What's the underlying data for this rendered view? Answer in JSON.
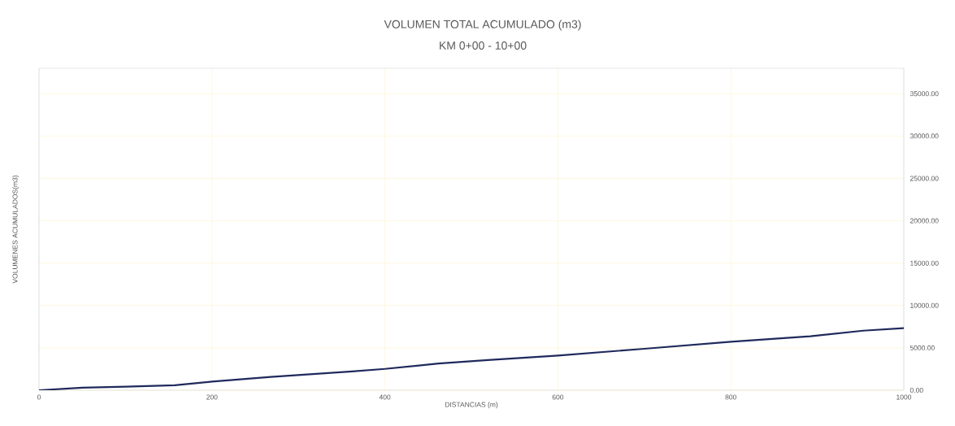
{
  "chart_data": {
    "type": "line",
    "title": "VOLUMEN TOTAL ACUMULADO (m3)",
    "subtitle": "KM 0+00 - 10+00",
    "xlabel": "DISTANCIAS (m)",
    "ylabel": "VOLUMENES ACUMULADOS(m3)",
    "series": [
      {
        "color": "#1f2a5c",
        "x": [
          0,
          50,
          100,
          157,
          200,
          268,
          362,
          400,
          462,
          519,
          600,
          700,
          800,
          892,
          953,
          1000
        ],
        "values": [
          0,
          290,
          410,
          580,
          1020,
          1565,
          2210,
          2515,
          3160,
          3570,
          4095,
          4890,
          5725,
          6375,
          7030,
          7320
        ]
      }
    ],
    "xlim": [
      0,
      1000
    ],
    "ylim": [
      0,
      38000
    ],
    "xticks": [
      0,
      200,
      400,
      600,
      800,
      1000
    ],
    "yticks": [
      {
        "value": 0,
        "label": "0.00"
      },
      {
        "value": 5000,
        "label": "5000.00"
      },
      {
        "value": 10000,
        "label": "10000.00"
      },
      {
        "value": 15000,
        "label": "15000.00"
      },
      {
        "value": 20000,
        "label": "20000.00"
      },
      {
        "value": 25000,
        "label": "25000.00"
      },
      {
        "value": 30000,
        "label": "30000.00"
      },
      {
        "value": 35000,
        "label": "35000.00"
      }
    ],
    "grid": true,
    "marker": "none",
    "line_style": "solid"
  }
}
